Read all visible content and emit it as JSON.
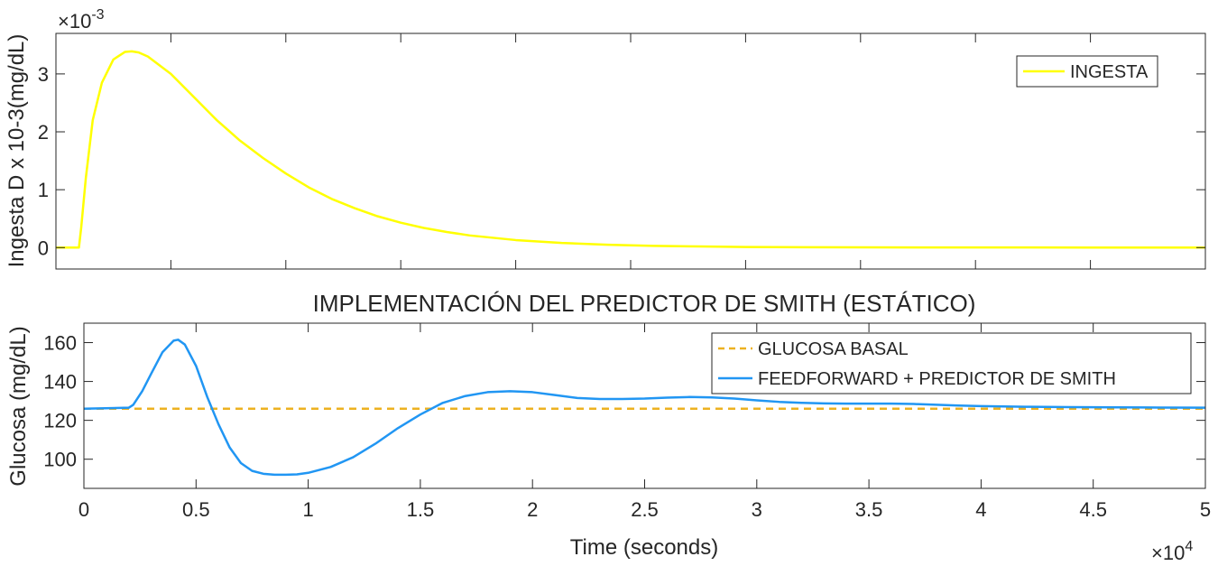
{
  "chart_data": [
    {
      "type": "line",
      "title": "",
      "ylabel": "Ingesta D x 10-3(mg/dL)",
      "xlabel": "",
      "xlim": [
        0,
        50000
      ],
      "ylim": [
        -0.37,
        3.7
      ],
      "yticks": [
        0,
        1,
        2,
        3
      ],
      "ytick_labels": [
        "0",
        "1",
        "2",
        "3"
      ],
      "xtick_labels_shown": false,
      "y_exponent_label": "×10",
      "y_exponent": "-3",
      "grid": false,
      "legend_position": "top-right",
      "series": [
        {
          "name": "INGESTA",
          "color": "#ffff00",
          "style": "solid",
          "x": [
            0,
            1000,
            1100,
            1300,
            1600,
            2000,
            2500,
            3000,
            3300,
            3600,
            4000,
            5000,
            6000,
            7000,
            8000,
            9000,
            10000,
            11000,
            12000,
            13000,
            14000,
            15000,
            16000,
            17000,
            18000,
            20000,
            22000,
            24000,
            26000,
            28000,
            30000,
            35000,
            40000,
            45000,
            50000
          ],
          "values": [
            0,
            0,
            0.35,
            1.2,
            2.2,
            2.85,
            3.25,
            3.38,
            3.39,
            3.37,
            3.3,
            3.0,
            2.6,
            2.2,
            1.85,
            1.55,
            1.28,
            1.04,
            0.84,
            0.68,
            0.54,
            0.43,
            0.34,
            0.27,
            0.21,
            0.13,
            0.08,
            0.05,
            0.03,
            0.02,
            0.01,
            0.004,
            0.002,
            0.001,
            0
          ]
        }
      ]
    },
    {
      "type": "line",
      "title": "IMPLEMENTACIÓN DEL PREDICTOR DE SMITH (ESTÁTICO)",
      "ylabel": "Glucosa (mg/dL)",
      "xlabel": "Time (seconds)",
      "xlim": [
        0,
        50000
      ],
      "ylim": [
        85,
        170
      ],
      "yticks": [
        100,
        120,
        140,
        160
      ],
      "ytick_labels": [
        "100",
        "120",
        "140",
        "160"
      ],
      "xticks": [
        0,
        5000,
        10000,
        15000,
        20000,
        25000,
        30000,
        35000,
        40000,
        45000,
        50000
      ],
      "xtick_labels": [
        "0",
        "0.5",
        "1",
        "1.5",
        "2",
        "2.5",
        "3",
        "3.5",
        "4",
        "4.5",
        "5"
      ],
      "x_exponent_label": "×10",
      "x_exponent": "4",
      "grid": false,
      "legend_position": "top-right",
      "series": [
        {
          "name": "GLUCOSA BASAL",
          "color": "#edb120",
          "style": "dashed",
          "x": [
            0,
            50000
          ],
          "values": [
            126,
            126
          ]
        },
        {
          "name": "FEEDFORWARD + PREDICTOR DE SMITH",
          "color": "#2196f3",
          "style": "solid",
          "x": [
            0,
            2000,
            2200,
            2600,
            3000,
            3500,
            4000,
            4200,
            4500,
            5000,
            5500,
            6000,
            6500,
            7000,
            7500,
            8000,
            8500,
            9000,
            9500,
            10000,
            11000,
            12000,
            13000,
            14000,
            15000,
            16000,
            17000,
            18000,
            19000,
            20000,
            21000,
            22000,
            23000,
            24000,
            25000,
            26000,
            27000,
            28000,
            29000,
            30000,
            31000,
            32000,
            33000,
            34000,
            35000,
            36000,
            37000,
            38000,
            39000,
            40000,
            42000,
            44000,
            46000,
            48000,
            50000
          ],
          "values": [
            126,
            126.5,
            128,
            135,
            144,
            155,
            161,
            161.5,
            159,
            148,
            132,
            118,
            106,
            98,
            94,
            92.5,
            92,
            92,
            92.2,
            93,
            96,
            101,
            108,
            116,
            123,
            129,
            132.5,
            134.5,
            135,
            134.5,
            133,
            131.5,
            131,
            131,
            131.2,
            131.7,
            132,
            131.8,
            131.2,
            130.3,
            129.5,
            129,
            128.7,
            128.6,
            128.6,
            128.6,
            128.4,
            128,
            127.6,
            127.3,
            127,
            126.8,
            126.7,
            126.6,
            126.5
          ]
        }
      ]
    }
  ]
}
